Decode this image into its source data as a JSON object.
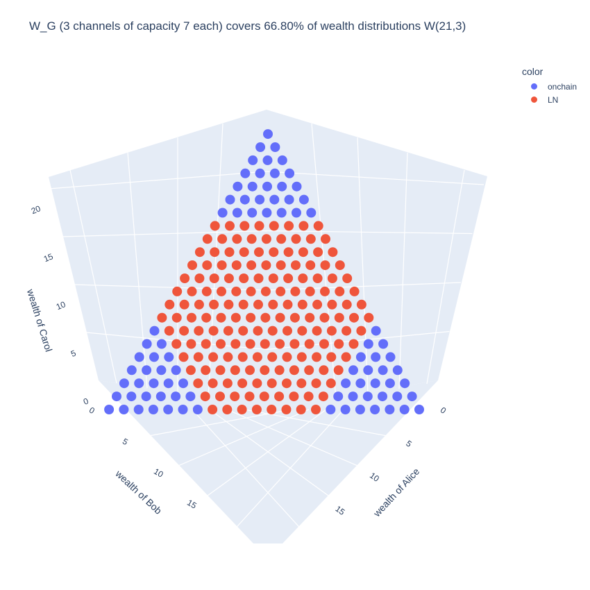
{
  "title": "W_G  (3 channels of capacity 7 each) covers 66.80% of wealth distributions W(21,3)",
  "legend": {
    "title": "color",
    "items": [
      {
        "label": "onchain",
        "color": "#636efa"
      },
      {
        "label": "LN",
        "color": "#ef553b"
      }
    ]
  },
  "chart_data": {
    "type": "scatter3d",
    "title": "W_G  (3 channels of capacity 7 each) covers 66.80% of wealth distributions W(21,3)",
    "total_wealth": 21,
    "channel_capacity": 7,
    "coverage_percent": 66.8,
    "series": [
      {
        "name": "onchain",
        "color": "#636efa",
        "rule": "points (Alice, Bob, Carol) with Alice+Bob+Carol=21 not covered by the LN channel states"
      },
      {
        "name": "LN",
        "color": "#ef553b",
        "rule": "points where Alice=a1+a2, Bob=(7-a1)+b2, Carol=(7-b2)+(7-a2), channel balances 0..7"
      }
    ],
    "axes": {
      "x": {
        "label": "wealth of Alice",
        "ticks": [
          0,
          5,
          10,
          15
        ],
        "range": [
          0,
          21
        ]
      },
      "y": {
        "label": "wealth of Bob",
        "ticks": [
          0,
          5,
          10,
          15
        ],
        "range": [
          0,
          21
        ]
      },
      "z": {
        "label": "wealth of Carol",
        "ticks": [
          0,
          5,
          10,
          15,
          20
        ],
        "range": [
          0,
          21
        ]
      }
    }
  }
}
